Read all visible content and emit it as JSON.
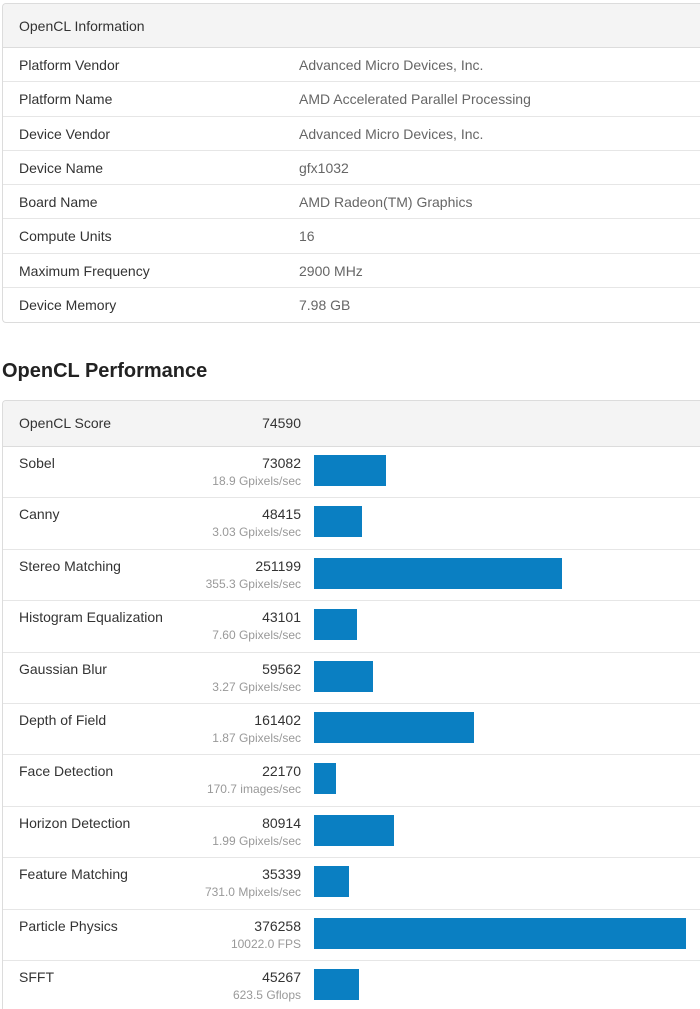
{
  "info": {
    "title": "OpenCL Information",
    "rows": [
      {
        "key": "Platform Vendor",
        "value": "Advanced Micro Devices, Inc."
      },
      {
        "key": "Platform Name",
        "value": "AMD Accelerated Parallel Processing"
      },
      {
        "key": "Device Vendor",
        "value": "Advanced Micro Devices, Inc."
      },
      {
        "key": "Device Name",
        "value": "gfx1032"
      },
      {
        "key": "Board Name",
        "value": "AMD Radeon(TM) Graphics"
      },
      {
        "key": "Compute Units",
        "value": "16"
      },
      {
        "key": "Maximum Frequency",
        "value": "2900 MHz"
      },
      {
        "key": "Device Memory",
        "value": "7.98 GB"
      }
    ]
  },
  "performance": {
    "title": "OpenCL Performance",
    "overall_label": "OpenCL Score",
    "overall_score": "74590",
    "bar_color": "#0a7fc2",
    "rows": [
      {
        "name": "Sobel",
        "score": "73082",
        "unit": "18.9 Gpixels/sec"
      },
      {
        "name": "Canny",
        "score": "48415",
        "unit": "3.03 Gpixels/sec"
      },
      {
        "name": "Stereo Matching",
        "score": "251199",
        "unit": "355.3 Gpixels/sec"
      },
      {
        "name": "Histogram Equalization",
        "score": "43101",
        "unit": "7.60 Gpixels/sec"
      },
      {
        "name": "Gaussian Blur",
        "score": "59562",
        "unit": "3.27 Gpixels/sec"
      },
      {
        "name": "Depth of Field",
        "score": "161402",
        "unit": "1.87 Gpixels/sec"
      },
      {
        "name": "Face Detection",
        "score": "22170",
        "unit": "170.7 images/sec"
      },
      {
        "name": "Horizon Detection",
        "score": "80914",
        "unit": "1.99 Gpixels/sec"
      },
      {
        "name": "Feature Matching",
        "score": "35339",
        "unit": "731.0 Mpixels/sec"
      },
      {
        "name": "Particle Physics",
        "score": "376258",
        "unit": "10022.0 FPS"
      },
      {
        "name": "SFFT",
        "score": "45267",
        "unit": "623.5 Gflops"
      }
    ]
  }
}
